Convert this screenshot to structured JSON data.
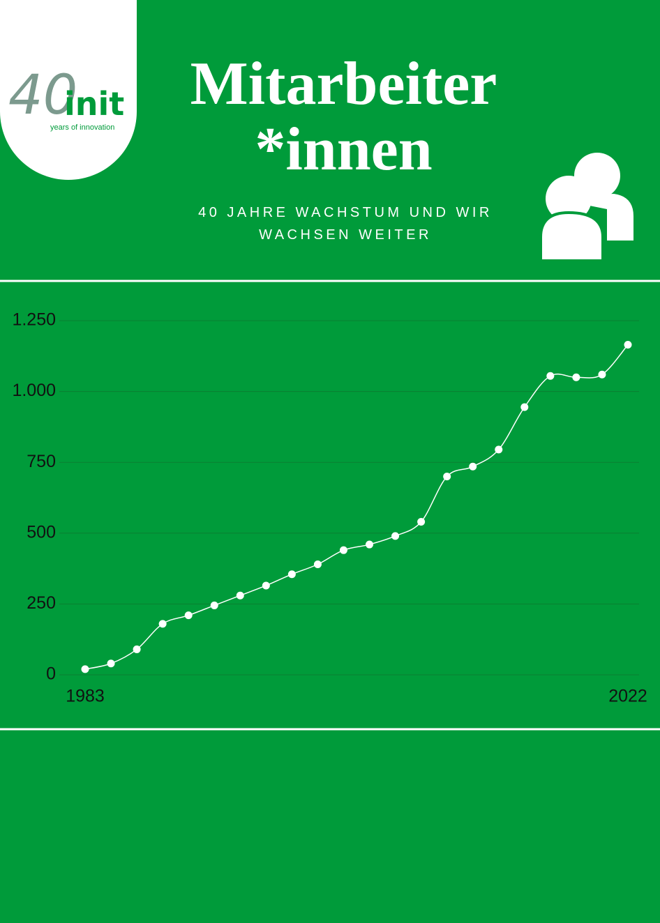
{
  "logo": {
    "number": "40",
    "brand": "init",
    "tagline": "years of innovation"
  },
  "header": {
    "title": "Mitarbeiter *innen",
    "subtitle": "40 JAHRE WACHSTUM UND WIR WACHSEN WEITER"
  },
  "chart_data": {
    "type": "line",
    "categories": [
      "1983",
      null,
      null,
      null,
      null,
      null,
      null,
      null,
      null,
      null,
      null,
      null,
      null,
      null,
      null,
      null,
      null,
      null,
      null,
      null,
      null,
      "2022"
    ],
    "series": [
      {
        "color": "#ffffff",
        "values": [
          20,
          40,
          90,
          180,
          210,
          245,
          280,
          315,
          355,
          390,
          440,
          460,
          490,
          540,
          700,
          735,
          795,
          945,
          1055,
          1050,
          1060,
          1165
        ]
      }
    ],
    "ylim": [
      0,
      1250
    ],
    "yticks": [
      0,
      250,
      500,
      750,
      {
        "value": 1000,
        "label": "1.000"
      },
      {
        "value": 1250,
        "label": "1.250"
      }
    ],
    "grid": true
  }
}
